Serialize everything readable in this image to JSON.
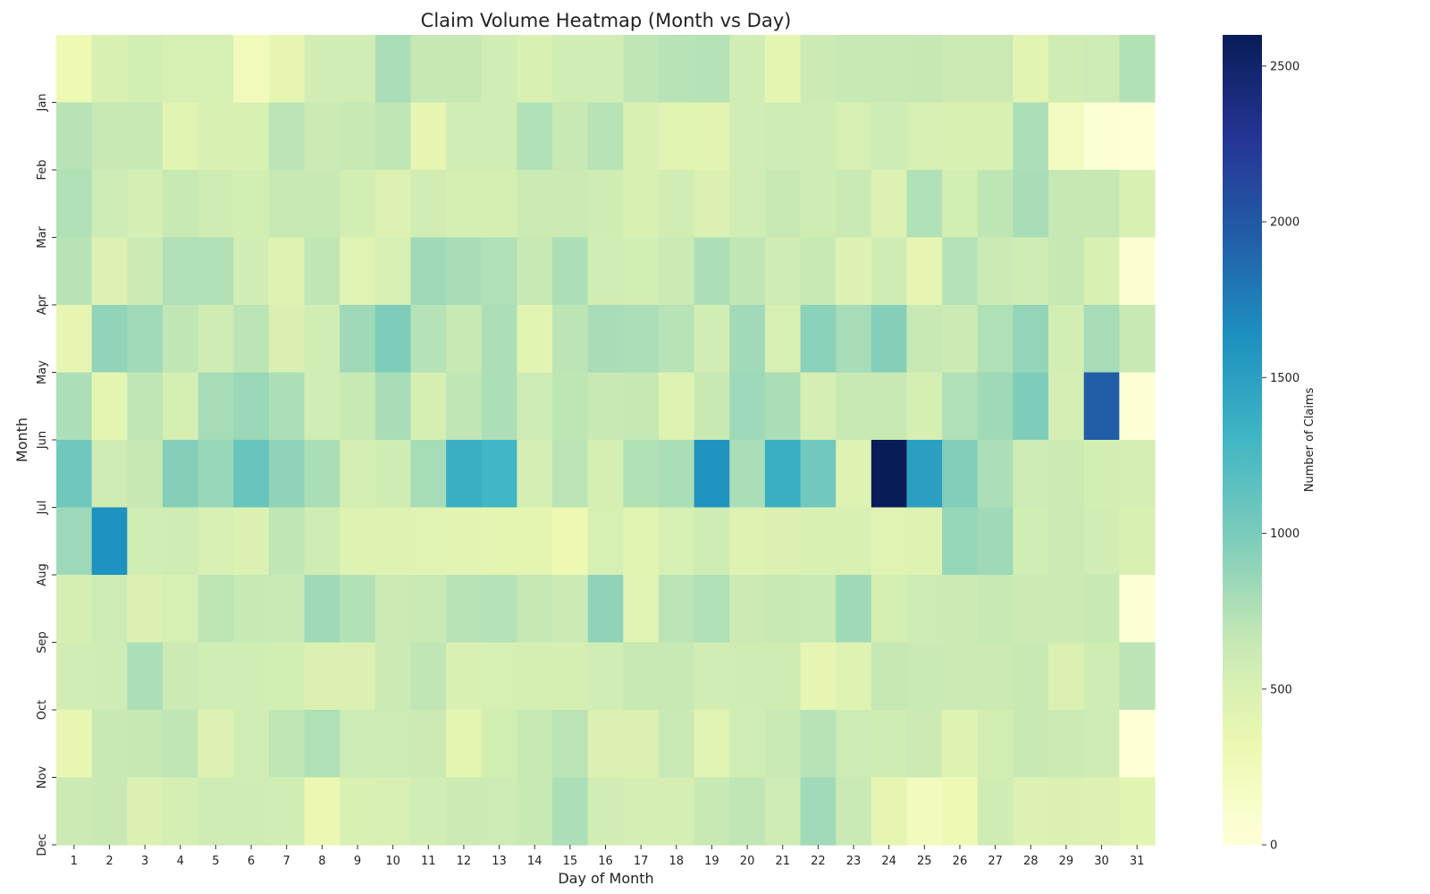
{
  "chart_data": {
    "type": "heatmap",
    "title": "Claim Volume Heatmap (Month vs Day)",
    "xlabel": "Day of Month",
    "ylabel": "Month",
    "colorbar_label": "Number of Claims",
    "colormap": "YlGnBu",
    "vmin": 0,
    "vmax": 2600,
    "colorbar_ticks": [
      0,
      500,
      1000,
      1500,
      2000,
      2500
    ],
    "x_categories": [
      "1",
      "2",
      "3",
      "4",
      "5",
      "6",
      "7",
      "8",
      "9",
      "10",
      "11",
      "12",
      "13",
      "14",
      "15",
      "16",
      "17",
      "18",
      "19",
      "20",
      "21",
      "22",
      "23",
      "24",
      "25",
      "26",
      "27",
      "28",
      "29",
      "30",
      "31"
    ],
    "y_categories": [
      "Jan",
      "Feb",
      "Mar",
      "Apr",
      "May",
      "Jun",
      "Jul",
      "Aug",
      "Sep",
      "Oct",
      "Nov",
      "Dec"
    ],
    "values": [
      [
        300,
        500,
        550,
        520,
        520,
        250,
        380,
        560,
        560,
        780,
        660,
        660,
        560,
        500,
        570,
        560,
        680,
        720,
        730,
        570,
        400,
        610,
        650,
        650,
        660,
        620,
        620,
        420,
        580,
        600,
        740
      ],
      [
        720,
        650,
        640,
        420,
        500,
        500,
        710,
        620,
        640,
        680,
        380,
        560,
        570,
        750,
        640,
        720,
        500,
        420,
        420,
        560,
        600,
        580,
        510,
        600,
        510,
        500,
        500,
        770,
        200,
        50,
        20
      ],
      [
        760,
        600,
        540,
        650,
        580,
        550,
        640,
        650,
        550,
        470,
        560,
        530,
        530,
        610,
        610,
        580,
        500,
        560,
        480,
        560,
        640,
        580,
        630,
        470,
        760,
        550,
        690,
        790,
        660,
        660,
        500
      ],
      [
        720,
        460,
        610,
        750,
        750,
        560,
        450,
        680,
        440,
        510,
        830,
        790,
        760,
        640,
        770,
        560,
        550,
        620,
        770,
        680,
        580,
        640,
        460,
        580,
        380,
        730,
        620,
        580,
        660,
        500,
        60
      ],
      [
        380,
        890,
        820,
        680,
        580,
        700,
        490,
        560,
        830,
        980,
        730,
        640,
        770,
        420,
        700,
        790,
        770,
        720,
        560,
        820,
        510,
        920,
        800,
        950,
        640,
        620,
        760,
        880,
        550,
        800,
        640
      ],
      [
        770,
        400,
        680,
        530,
        800,
        850,
        770,
        570,
        650,
        790,
        530,
        680,
        770,
        600,
        690,
        640,
        660,
        450,
        640,
        840,
        780,
        540,
        650,
        640,
        530,
        760,
        830,
        980,
        540,
        1950,
        40
      ],
      [
        1060,
        580,
        660,
        950,
        860,
        1100,
        900,
        780,
        540,
        580,
        800,
        1360,
        1300,
        540,
        710,
        530,
        740,
        780,
        1600,
        780,
        1360,
        1040,
        450,
        2600,
        1500,
        960,
        770,
        600,
        620,
        550,
        540
      ],
      [
        840,
        1620,
        570,
        580,
        510,
        480,
        680,
        590,
        450,
        450,
        430,
        410,
        400,
        400,
        310,
        520,
        420,
        520,
        590,
        450,
        480,
        500,
        500,
        440,
        450,
        870,
        830,
        570,
        620,
        560,
        500
      ],
      [
        530,
        600,
        480,
        520,
        690,
        650,
        630,
        830,
        740,
        620,
        630,
        720,
        730,
        660,
        610,
        900,
        440,
        710,
        760,
        610,
        640,
        630,
        830,
        530,
        600,
        610,
        650,
        610,
        620,
        650,
        40
      ],
      [
        560,
        590,
        770,
        620,
        570,
        570,
        550,
        480,
        480,
        620,
        680,
        500,
        520,
        530,
        530,
        570,
        650,
        640,
        560,
        580,
        580,
        380,
        450,
        660,
        630,
        620,
        620,
        640,
        480,
        580,
        700
      ],
      [
        370,
        640,
        660,
        680,
        460,
        570,
        680,
        760,
        600,
        600,
        620,
        400,
        550,
        650,
        710,
        480,
        480,
        630,
        430,
        570,
        630,
        720,
        600,
        580,
        620,
        450,
        550,
        640,
        620,
        580,
        20
      ],
      [
        620,
        640,
        480,
        540,
        590,
        590,
        570,
        330,
        500,
        510,
        560,
        620,
        600,
        650,
        770,
        560,
        540,
        540,
        640,
        680,
        590,
        820,
        630,
        380,
        230,
        300,
        580,
        460,
        480,
        470,
        420
      ]
    ]
  }
}
